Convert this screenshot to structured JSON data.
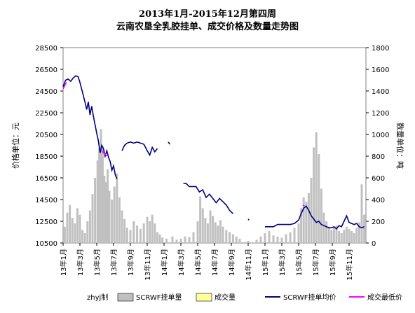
{
  "chart_data": {
    "type": "line",
    "title": [
      "2013年1月-2015年12月第四周",
      "云南农垦全乳胶挂单、成交价格及数量走势图"
    ],
    "ylabel_left": "价格单位：元",
    "ylabel_right": "数量单位：吨",
    "ylim_left": [
      10500,
      28500
    ],
    "yticks_left": [
      10500,
      12500,
      14500,
      16500,
      18500,
      20500,
      22500,
      24500,
      26500,
      28500
    ],
    "ylim_right": [
      0,
      1800
    ],
    "yticks_right": [
      0,
      200,
      400,
      600,
      800,
      1000,
      1200,
      1400,
      1600,
      1800
    ],
    "xticks": [
      "13年1月",
      "13年3月",
      "13年5月",
      "13年7月",
      "13年9月",
      "13年11月",
      "14年1月",
      "14年3月",
      "14年5月",
      "14年7月",
      "14年9月",
      "14年11月",
      "15年1月",
      "15年3月",
      "15年5月",
      "15年7月",
      "15年9月",
      "15年11月"
    ],
    "x_months": [
      0,
      2,
      4,
      6,
      8,
      10,
      12,
      14,
      16,
      18,
      20,
      22,
      24,
      26,
      28,
      30,
      32,
      34
    ],
    "xlim_months": [
      0,
      36
    ],
    "grid": false,
    "series": [
      {
        "name": "SCRWF挂单量",
        "type": "bar",
        "axis": "right",
        "color": "#c0c0c0",
        "points": [
          [
            0.2,
            150
          ],
          [
            0.5,
            280
          ],
          [
            0.8,
            350
          ],
          [
            1.1,
            230
          ],
          [
            1.4,
            180
          ],
          [
            1.7,
            320
          ],
          [
            2.0,
            260
          ],
          [
            2.3,
            120
          ],
          [
            2.6,
            90
          ],
          [
            2.9,
            200
          ],
          [
            3.2,
            300
          ],
          [
            3.5,
            450
          ],
          [
            3.8,
            600
          ],
          [
            4.1,
            760
          ],
          [
            4.3,
            880
          ],
          [
            4.5,
            1050
          ],
          [
            4.7,
            880
          ],
          [
            4.9,
            620
          ],
          [
            5.1,
            560
          ],
          [
            5.3,
            680
          ],
          [
            5.5,
            480
          ],
          [
            5.8,
            400
          ],
          [
            6.1,
            520
          ],
          [
            6.4,
            640
          ],
          [
            6.7,
            420
          ],
          [
            7.0,
            300
          ],
          [
            7.3,
            220
          ],
          [
            7.6,
            140
          ],
          [
            8.0,
            120
          ],
          [
            8.4,
            200
          ],
          [
            8.8,
            160
          ],
          [
            9.2,
            130
          ],
          [
            9.6,
            180
          ],
          [
            10.0,
            240
          ],
          [
            10.3,
            200
          ],
          [
            10.6,
            260
          ],
          [
            10.9,
            180
          ],
          [
            11.2,
            100
          ],
          [
            11.5,
            80
          ],
          [
            11.8,
            50
          ],
          [
            12.3,
            40
          ],
          [
            13.0,
            60
          ],
          [
            13.5,
            30
          ],
          [
            14.0,
            40
          ],
          [
            14.5,
            60
          ],
          [
            15.0,
            55
          ],
          [
            15.5,
            100
          ],
          [
            16.0,
            200
          ],
          [
            16.3,
            430
          ],
          [
            16.6,
            320
          ],
          [
            16.9,
            230
          ],
          [
            17.2,
            180
          ],
          [
            17.5,
            300
          ],
          [
            17.8,
            250
          ],
          [
            18.1,
            190
          ],
          [
            18.4,
            160
          ],
          [
            18.7,
            210
          ],
          [
            19.0,
            150
          ],
          [
            19.4,
            120
          ],
          [
            19.8,
            100
          ],
          [
            20.2,
            80
          ],
          [
            20.6,
            60
          ],
          [
            21.0,
            40
          ],
          [
            22.0,
            20
          ],
          [
            23.0,
            30
          ],
          [
            23.5,
            60
          ],
          [
            24.0,
            90
          ],
          [
            24.5,
            110
          ],
          [
            25.0,
            70
          ],
          [
            25.5,
            60
          ],
          [
            26.0,
            50
          ],
          [
            26.5,
            80
          ],
          [
            27.0,
            100
          ],
          [
            27.5,
            140
          ],
          [
            28.0,
            180
          ],
          [
            28.3,
            320
          ],
          [
            28.6,
            420
          ],
          [
            28.9,
            380
          ],
          [
            29.2,
            460
          ],
          [
            29.5,
            600
          ],
          [
            29.8,
            880
          ],
          [
            30.1,
            1020
          ],
          [
            30.4,
            820
          ],
          [
            30.7,
            500
          ],
          [
            31.0,
            280
          ],
          [
            31.3,
            200
          ],
          [
            31.6,
            150
          ],
          [
            31.9,
            120
          ],
          [
            32.2,
            140
          ],
          [
            32.5,
            160
          ],
          [
            32.8,
            110
          ],
          [
            33.1,
            90
          ],
          [
            33.4,
            120
          ],
          [
            33.7,
            150
          ],
          [
            34.0,
            130
          ],
          [
            34.3,
            110
          ],
          [
            34.6,
            90
          ],
          [
            34.9,
            140
          ],
          [
            35.2,
            190
          ],
          [
            35.5,
            540
          ],
          [
            35.8,
            260
          ]
        ]
      },
      {
        "name": "成交量",
        "type": "bar",
        "axis": "right",
        "color": "#ffff99",
        "points": []
      },
      {
        "name": "SCRWF挂单均价",
        "type": "line",
        "axis": "left",
        "color": "#000080",
        "segments": [
          [
            [
              0.0,
              24900
            ],
            [
              0.3,
              25500
            ],
            [
              0.6,
              25600
            ],
            [
              0.9,
              25400
            ],
            [
              1.2,
              25700
            ],
            [
              1.5,
              25900
            ],
            [
              1.8,
              25800
            ],
            [
              2.0,
              25300
            ],
            [
              2.2,
              24700
            ],
            [
              2.4,
              24100
            ],
            [
              2.6,
              23500
            ],
            [
              2.8,
              22800
            ],
            [
              3.0,
              23500
            ],
            [
              3.2,
              22300
            ],
            [
              3.4,
              23100
            ],
            [
              3.6,
              22200
            ],
            [
              3.8,
              21400
            ],
            [
              4.0,
              20600
            ],
            [
              4.2,
              19900
            ],
            [
              4.4,
              18800
            ],
            [
              4.6,
              19500
            ],
            [
              4.8,
              19200
            ],
            [
              5.0,
              18500
            ],
            [
              5.2,
              19000
            ],
            [
              5.4,
              18400
            ],
            [
              5.6,
              18000
            ],
            [
              5.8,
              17200
            ],
            [
              6.0,
              17600
            ],
            [
              6.2,
              16800
            ],
            [
              6.4,
              16400
            ]
          ],
          [
            [
              7.0,
              19000
            ],
            [
              7.3,
              19500
            ],
            [
              7.6,
              19700
            ],
            [
              8.0,
              19800
            ],
            [
              8.4,
              19700
            ],
            [
              8.8,
              19800
            ],
            [
              9.2,
              19700
            ],
            [
              9.6,
              19600
            ],
            [
              10.0,
              19000
            ],
            [
              10.3,
              18600
            ],
            [
              10.6,
              19300
            ],
            [
              10.9,
              18900
            ],
            [
              11.2,
              19200
            ]
          ],
          [
            [
              12.5,
              19800
            ],
            [
              12.7,
              19600
            ]
          ],
          [
            [
              14.3,
              16000
            ],
            [
              14.6,
              16000
            ],
            [
              15.0,
              15700
            ],
            [
              15.4,
              15700
            ],
            [
              15.8,
              15700
            ],
            [
              16.2,
              15200
            ],
            [
              16.6,
              15400
            ],
            [
              17.0,
              14700
            ],
            [
              17.4,
              15000
            ],
            [
              17.8,
              14600
            ],
            [
              18.2,
              14200
            ],
            [
              18.6,
              14600
            ],
            [
              19.0,
              14300
            ],
            [
              19.4,
              14000
            ],
            [
              19.8,
              13500
            ],
            [
              20.2,
              13200
            ]
          ],
          [
            [
              22.0,
              12600
            ],
            [
              22.1,
              12700
            ]
          ],
          [
            [
              24.0,
              12000
            ],
            [
              24.3,
              12000
            ],
            [
              24.7,
              12000
            ],
            [
              25.0,
              12000
            ],
            [
              25.5,
              12200
            ],
            [
              26.0,
              12200
            ],
            [
              26.5,
              12200
            ],
            [
              27.0,
              12200
            ],
            [
              27.5,
              12300
            ],
            [
              28.0,
              12600
            ],
            [
              28.3,
              13200
            ],
            [
              28.6,
              13700
            ],
            [
              28.9,
              13900
            ],
            [
              29.2,
              13500
            ],
            [
              29.5,
              13000
            ],
            [
              29.8,
              12700
            ],
            [
              30.1,
              12400
            ],
            [
              30.4,
              12500
            ],
            [
              30.7,
              12200
            ],
            [
              31.0,
              12100
            ],
            [
              31.3,
              12000
            ],
            [
              31.6,
              11900
            ],
            [
              31.9,
              11900
            ],
            [
              32.2,
              12000
            ],
            [
              32.5,
              11800
            ],
            [
              32.8,
              12100
            ],
            [
              33.1,
              12000
            ],
            [
              33.4,
              12500
            ],
            [
              33.7,
              13000
            ],
            [
              34.0,
              12400
            ],
            [
              34.3,
              12300
            ],
            [
              34.6,
              12200
            ],
            [
              34.9,
              12300
            ],
            [
              35.2,
              12000
            ],
            [
              35.5,
              11900
            ],
            [
              35.8,
              12000
            ]
          ]
        ]
      },
      {
        "name": "成交最低价",
        "type": "line",
        "axis": "left",
        "color": "#ff00ff",
        "segments": [
          [
            [
              0.0,
              24700
            ],
            [
              0.2,
              25000
            ],
            [
              0.4,
              25300
            ]
          ],
          [
            [
              4.6,
              19000
            ],
            [
              4.8,
              18800
            ],
            [
              5.0,
              18700
            ],
            [
              5.2,
              18500
            ]
          ],
          [
            [
              28.5,
              14000
            ],
            [
              28.7,
              13900
            ]
          ]
        ]
      }
    ],
    "footnote": "zhyj制"
  }
}
